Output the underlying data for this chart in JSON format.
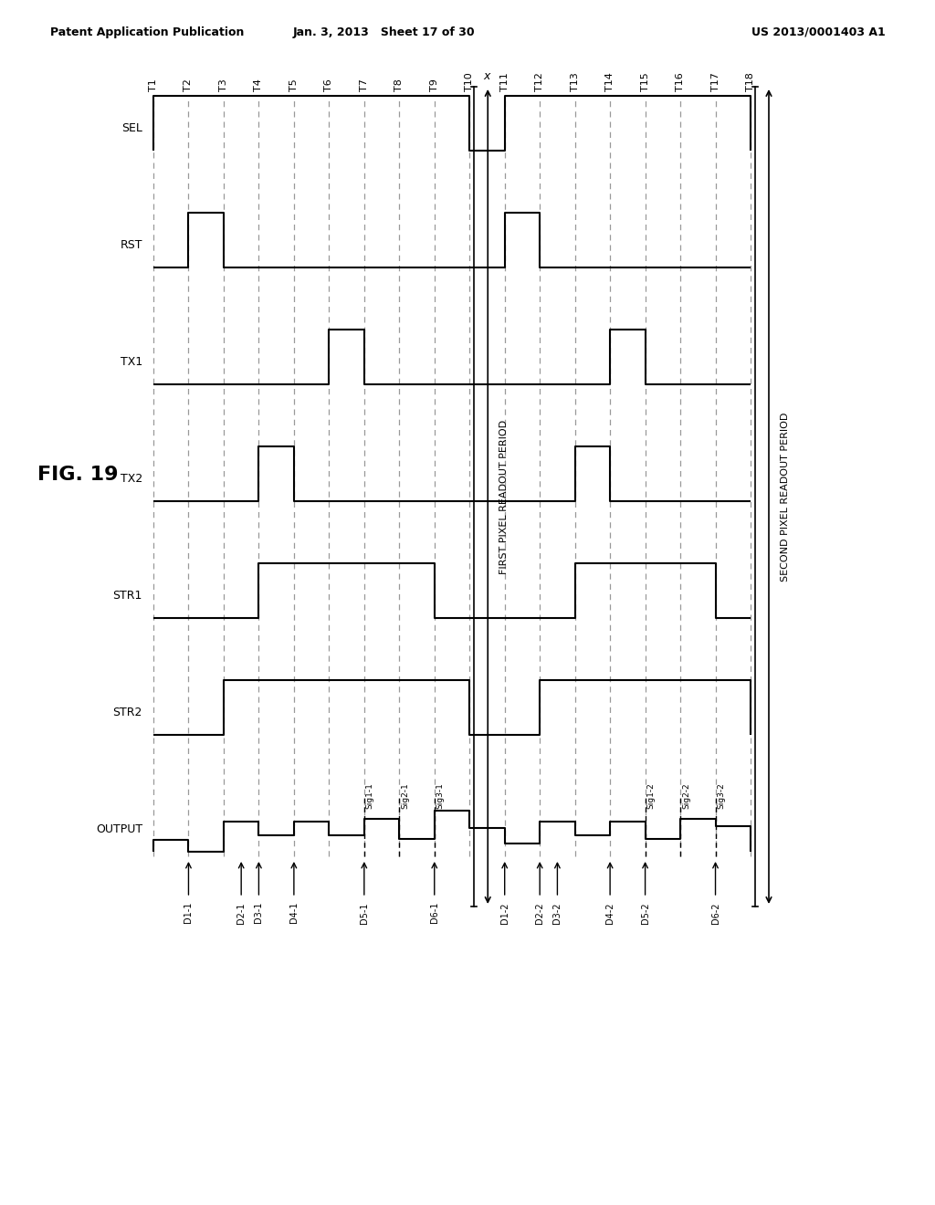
{
  "title": "FIG. 19",
  "header_left": "Patent Application Publication",
  "header_mid": "Jan. 3, 2013   Sheet 17 of 30",
  "header_right": "US 2013/0001403 A1",
  "signals": [
    "SEL",
    "RST",
    "TX1",
    "TX2",
    "STR1",
    "STR2",
    "OUTPUT"
  ],
  "time_labels": [
    "T1",
    "T2",
    "T3",
    "T4",
    "T5",
    "T6",
    "T7",
    "T8",
    "T9",
    "T10",
    "T11",
    "T12",
    "T13",
    "T14",
    "T15",
    "T16",
    "T17",
    "T18"
  ],
  "n_times": 18,
  "bg_color": "#ffffff",
  "line_color": "#000000"
}
